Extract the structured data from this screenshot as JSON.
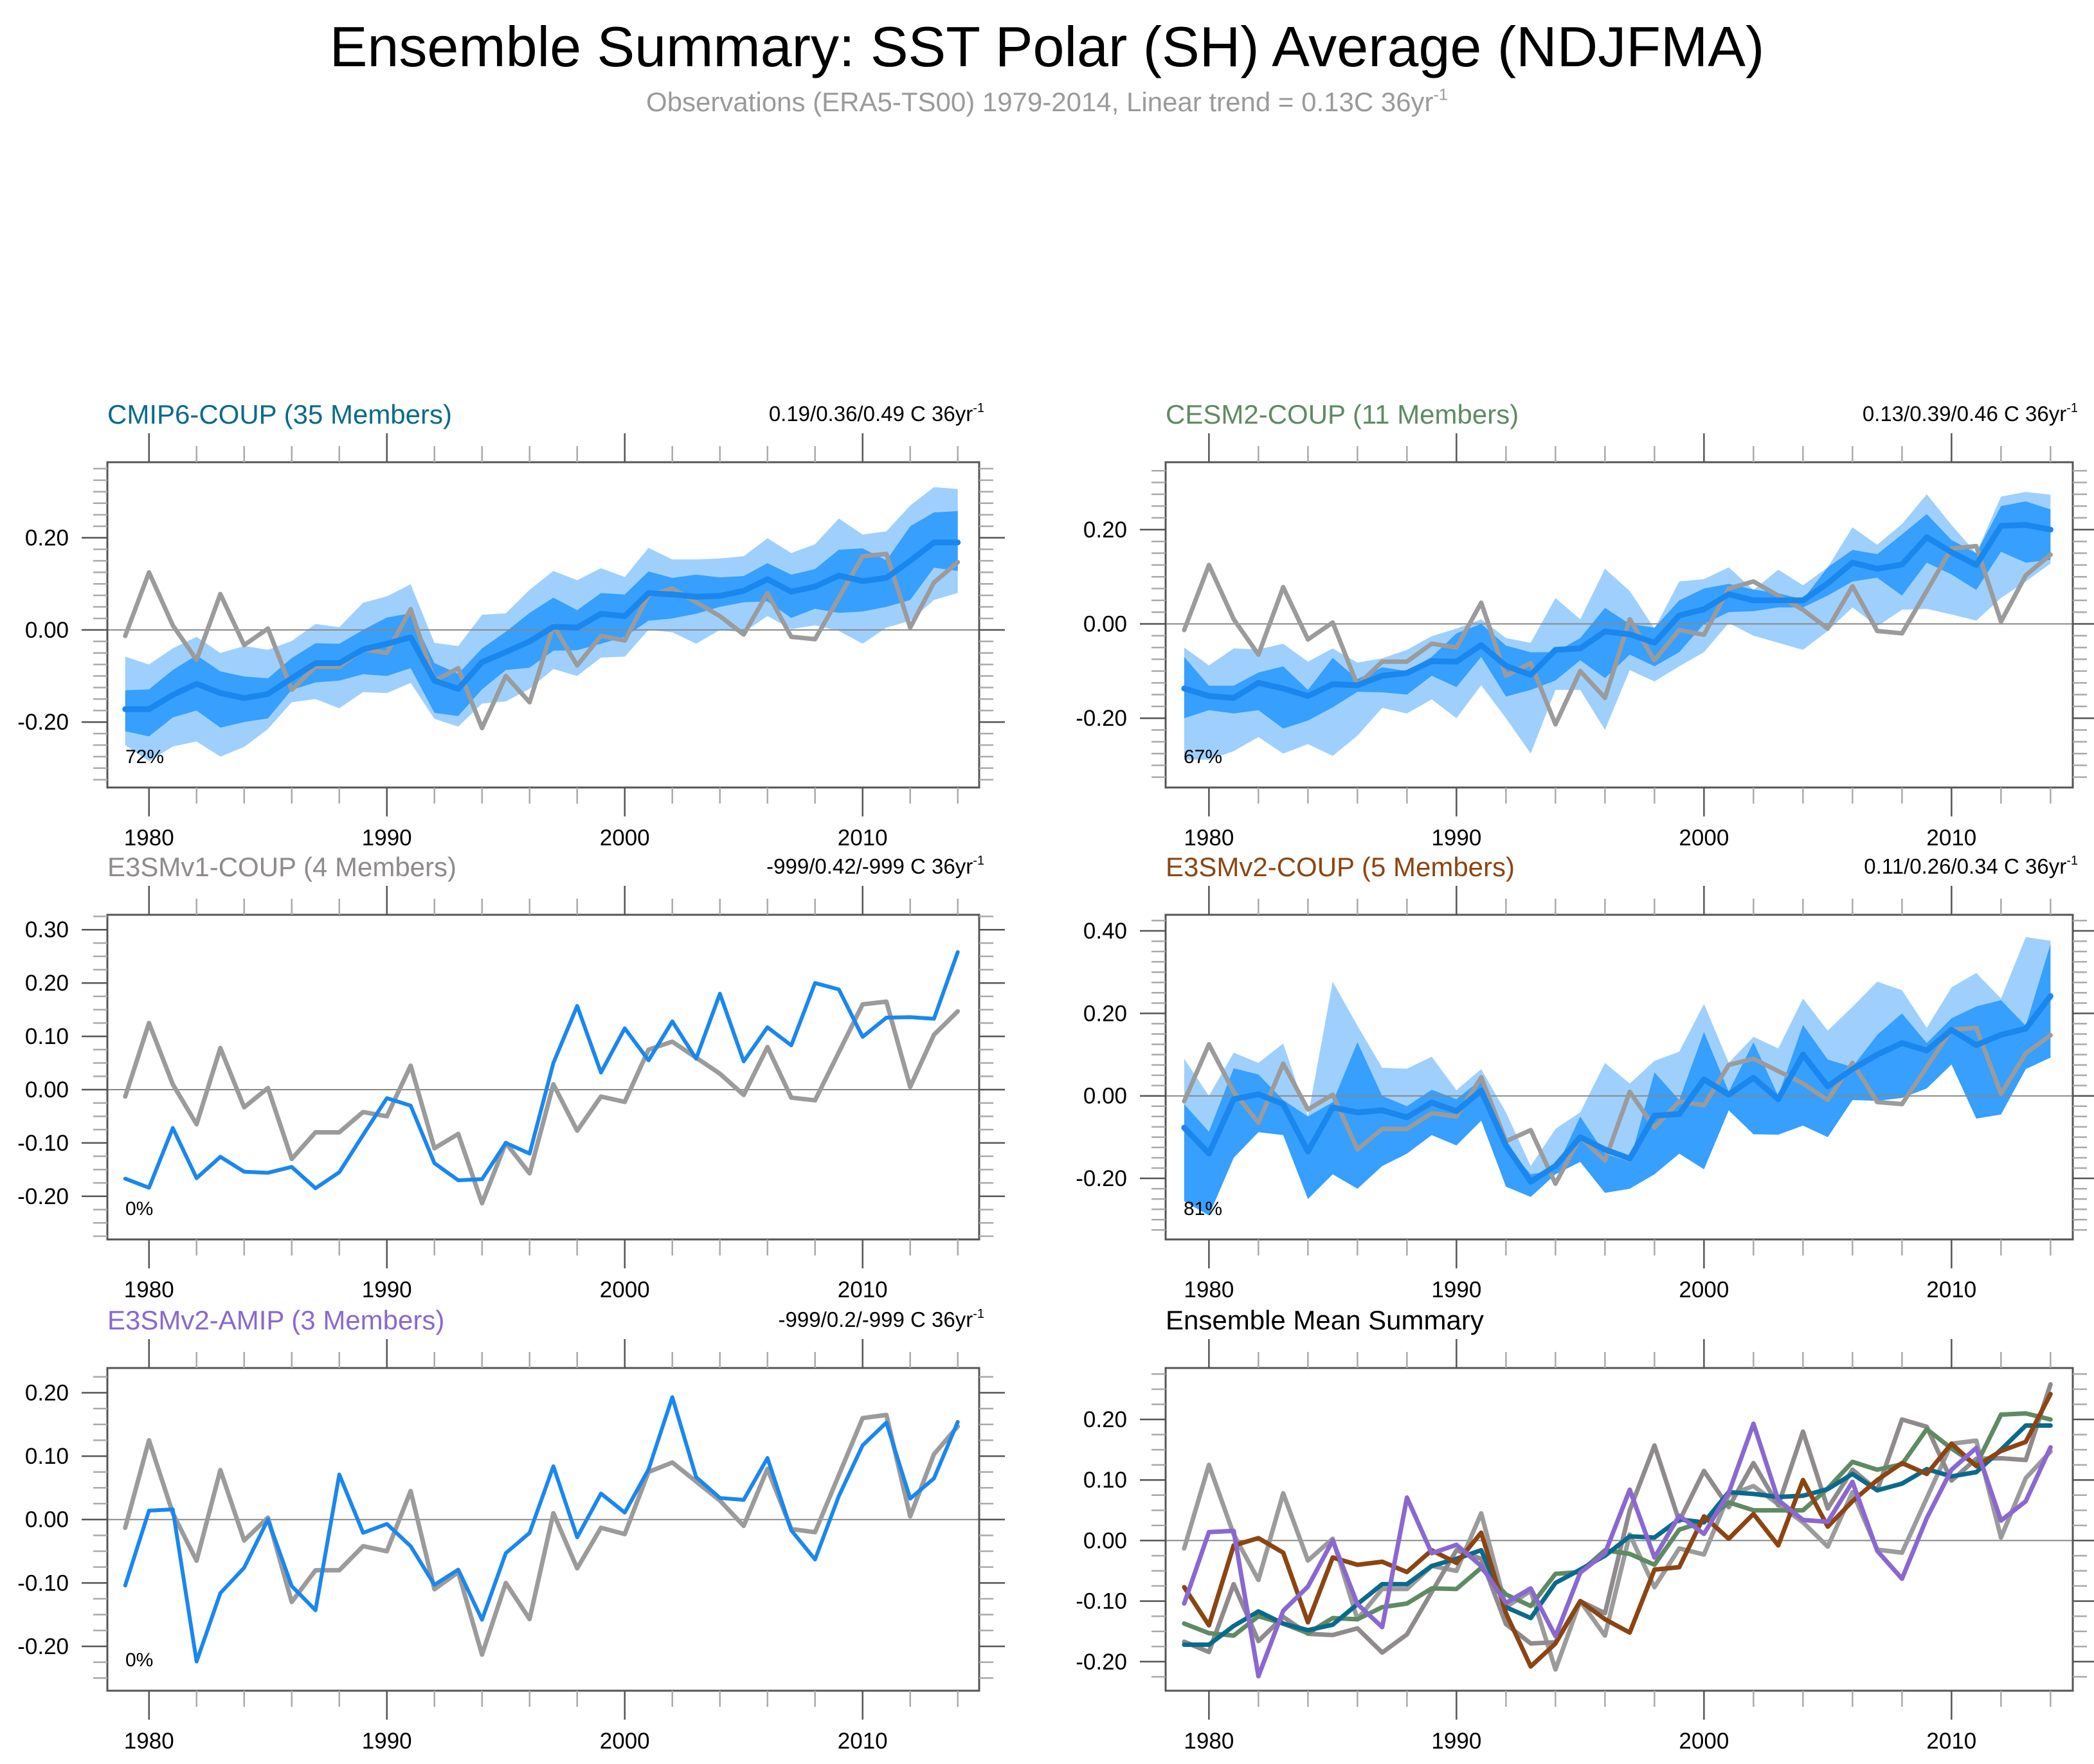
{
  "title": "Ensemble Summary: SST Polar (SH) Average (NDJFMA)",
  "subtitle": {
    "text": "Observations (ERA5-TS00) 1979-2014, Linear trend = 0.13C 36yr",
    "superscript": "-1"
  },
  "colors": {
    "observations": "#9b9b9b",
    "band_outer": "#9fd0fd",
    "band_inner": "#379ffd",
    "ensemble_mean": "#1a87ee",
    "zero_line": "#888888",
    "cmip6": "#0a6a8c",
    "cesm2": "#5f8a63",
    "e3smv1": "#8f8a8c",
    "e3smv2_coup": "#8b4513",
    "e3smv2_amip": "#8a68d0"
  },
  "chart_data": [
    {
      "id": "cmip6",
      "type": "area",
      "title": "CMIP6-COUP (35 Members)",
      "title_color_key": "cmip6",
      "trend_label": "0.19/0.36/0.49 C 36yr",
      "trend_sup": "-1",
      "percent_label": "72%",
      "ylim": [
        -0.342,
        0.364
      ],
      "yticks": [
        -0.2,
        0.0,
        0.2
      ],
      "ytick_labels": [
        "-0.20",
        "0.00",
        "0.20"
      ],
      "xlim": [
        1978.25,
        2014.9
      ],
      "xticks": [
        1980,
        1990,
        2000,
        2010
      ],
      "xtick_labels": [
        "1980",
        "1990",
        "2000",
        "2010"
      ],
      "x": [
        1979,
        1980,
        1981,
        1982,
        1983,
        1984,
        1985,
        1986,
        1987,
        1988,
        1989,
        1990,
        1991,
        1992,
        1993,
        1994,
        1995,
        1996,
        1997,
        1998,
        1999,
        2000,
        2001,
        2002,
        2003,
        2004,
        2005,
        2006,
        2007,
        2008,
        2009,
        2010,
        2011,
        2012,
        2013,
        2014
      ],
      "band_outer_max": [
        -0.058,
        -0.075,
        -0.04,
        -0.015,
        -0.05,
        -0.035,
        -0.043,
        -0.024,
        0.013,
        0.006,
        0.059,
        0.073,
        0.099,
        -0.028,
        -0.035,
        0.033,
        0.036,
        0.087,
        0.128,
        0.108,
        0.134,
        0.115,
        0.178,
        0.153,
        0.153,
        0.155,
        0.16,
        0.199,
        0.167,
        0.186,
        0.242,
        0.207,
        0.214,
        0.27,
        0.31,
        0.306
      ],
      "band_inner_max": [
        -0.131,
        -0.129,
        -0.087,
        -0.055,
        -0.09,
        -0.101,
        -0.105,
        -0.061,
        -0.029,
        -0.03,
        0.0,
        0.027,
        0.036,
        -0.072,
        -0.095,
        -0.04,
        -0.004,
        0.037,
        0.07,
        0.043,
        0.08,
        0.077,
        0.127,
        0.113,
        0.12,
        0.114,
        0.117,
        0.145,
        0.12,
        0.132,
        0.174,
        0.177,
        0.151,
        0.225,
        0.255,
        0.258
      ],
      "band_inner_min": [
        -0.22,
        -0.231,
        -0.19,
        -0.175,
        -0.212,
        -0.2,
        -0.192,
        -0.13,
        -0.114,
        -0.11,
        -0.096,
        -0.1,
        -0.083,
        -0.18,
        -0.187,
        -0.129,
        -0.087,
        -0.082,
        -0.045,
        -0.044,
        -0.03,
        -0.015,
        0.02,
        0.025,
        0.035,
        0.05,
        0.06,
        0.062,
        0.026,
        0.046,
        0.037,
        0.04,
        0.05,
        0.065,
        0.135,
        0.128
      ],
      "band_outer_min": [
        -0.25,
        -0.285,
        -0.253,
        -0.242,
        -0.275,
        -0.254,
        -0.215,
        -0.157,
        -0.15,
        -0.17,
        -0.135,
        -0.137,
        -0.115,
        -0.193,
        -0.21,
        -0.16,
        -0.155,
        -0.128,
        -0.085,
        -0.1,
        -0.06,
        -0.058,
        0.0,
        -0.005,
        -0.03,
        0.0,
        -0.005,
        0.03,
        0.002,
        0.01,
        -0.002,
        -0.03,
        0.005,
        0.02,
        0.065,
        0.08
      ],
      "mean": [
        -0.172,
        -0.172,
        -0.141,
        -0.117,
        -0.137,
        -0.148,
        -0.139,
        -0.105,
        -0.072,
        -0.072,
        -0.042,
        -0.03,
        -0.016,
        -0.11,
        -0.128,
        -0.07,
        -0.048,
        -0.025,
        0.007,
        0.005,
        0.035,
        0.03,
        0.08,
        0.077,
        0.072,
        0.074,
        0.085,
        0.11,
        0.083,
        0.094,
        0.118,
        0.106,
        0.113,
        0.15,
        0.19,
        0.19
      ]
    },
    {
      "id": "cesm2",
      "type": "area",
      "title": "CESM2-COUP (11 Members)",
      "title_color_key": "cesm2",
      "trend_label": "0.13/0.39/0.46 C 36yr",
      "trend_sup": "-1",
      "percent_label": "67%",
      "ylim": [
        -0.347,
        0.343
      ],
      "yticks": [
        -0.2,
        0.0,
        0.2
      ],
      "ytick_labels": [
        "-0.20",
        "0.00",
        "0.20"
      ],
      "xlim": [
        1978.25,
        2014.9
      ],
      "xticks": [
        1980,
        1990,
        2000,
        2010
      ],
      "xtick_labels": [
        "1980",
        "1990",
        "2000",
        "2010"
      ],
      "x": [
        1979,
        1980,
        1981,
        1982,
        1983,
        1984,
        1985,
        1986,
        1987,
        1988,
        1989,
        1990,
        1991,
        1992,
        1993,
        1994,
        1995,
        1996,
        1997,
        1998,
        1999,
        2000,
        2001,
        2002,
        2003,
        2004,
        2005,
        2006,
        2007,
        2008,
        2009,
        2010,
        2011,
        2012,
        2013,
        2014
      ],
      "band_outer_max": [
        -0.05,
        -0.088,
        -0.052,
        -0.054,
        -0.042,
        -0.08,
        -0.052,
        -0.082,
        -0.073,
        -0.055,
        -0.026,
        -0.01,
        0.01,
        -0.03,
        -0.04,
        0.055,
        0.01,
        0.117,
        0.07,
        -0.01,
        0.09,
        0.095,
        0.12,
        0.072,
        0.115,
        0.082,
        0.12,
        0.205,
        0.168,
        0.212,
        0.275,
        0.21,
        0.15,
        0.27,
        0.28,
        0.274
      ],
      "band_inner_max": [
        -0.07,
        -0.131,
        -0.131,
        -0.103,
        -0.09,
        -0.14,
        -0.072,
        -0.117,
        -0.092,
        -0.1,
        -0.07,
        -0.02,
        0.0,
        -0.046,
        -0.06,
        -0.06,
        -0.03,
        0.034,
        0.0,
        -0.008,
        0.05,
        0.075,
        0.085,
        0.073,
        0.065,
        0.052,
        0.12,
        0.157,
        0.148,
        0.19,
        0.233,
        0.178,
        0.15,
        0.25,
        0.26,
        0.243
      ],
      "band_inner_min": [
        -0.2,
        -0.183,
        -0.19,
        -0.183,
        -0.222,
        -0.205,
        -0.177,
        -0.144,
        -0.145,
        -0.15,
        -0.11,
        -0.134,
        -0.07,
        -0.154,
        -0.14,
        -0.12,
        -0.077,
        -0.115,
        -0.065,
        -0.09,
        -0.06,
        0.0,
        0.025,
        0.027,
        0.035,
        0.035,
        0.06,
        0.09,
        0.098,
        0.06,
        0.13,
        0.105,
        0.072,
        0.153,
        0.13,
        0.136
      ],
      "band_outer_min": [
        -0.288,
        -0.288,
        -0.27,
        -0.24,
        -0.275,
        -0.255,
        -0.28,
        -0.237,
        -0.178,
        -0.19,
        -0.16,
        -0.2,
        -0.13,
        -0.2,
        -0.275,
        -0.14,
        -0.14,
        -0.225,
        -0.098,
        -0.122,
        -0.09,
        -0.06,
        0.002,
        -0.025,
        -0.04,
        -0.055,
        -0.015,
        0.035,
        -0.005,
        0.03,
        0.032,
        0.02,
        0.007,
        0.055,
        0.09,
        0.128
      ],
      "mean": [
        -0.137,
        -0.153,
        -0.157,
        -0.125,
        -0.137,
        -0.153,
        -0.128,
        -0.13,
        -0.11,
        -0.104,
        -0.079,
        -0.08,
        -0.045,
        -0.089,
        -0.108,
        -0.055,
        -0.052,
        -0.016,
        -0.022,
        -0.04,
        0.018,
        0.031,
        0.063,
        0.05,
        0.05,
        0.05,
        0.086,
        0.13,
        0.117,
        0.126,
        0.184,
        0.152,
        0.125,
        0.208,
        0.21,
        0.2
      ]
    },
    {
      "id": "e3smv1",
      "type": "line",
      "title": "E3SMv1-COUP (4 Members)",
      "title_color_key": "e3smv1",
      "trend_label": "-999/0.42/-999 C 36yr",
      "trend_sup": "-1",
      "percent_label": "0%",
      "ylim": [
        -0.281,
        0.328
      ],
      "yticks": [
        -0.2,
        -0.1,
        0.0,
        0.1,
        0.2,
        0.3
      ],
      "ytick_labels": [
        "-0.20",
        "-0.10",
        "0.00",
        "0.10",
        "0.20",
        "0.30"
      ],
      "xlim": [
        1978.25,
        2014.9
      ],
      "xticks": [
        1980,
        1990,
        2000,
        2010
      ],
      "xtick_labels": [
        "1980",
        "1990",
        "2000",
        "2010"
      ],
      "x": [
        1979,
        1980,
        1981,
        1982,
        1983,
        1984,
        1985,
        1986,
        1987,
        1988,
        1989,
        1990,
        1991,
        1992,
        1993,
        1994,
        1995,
        1996,
        1997,
        1998,
        1999,
        2000,
        2001,
        2002,
        2003,
        2004,
        2005,
        2006,
        2007,
        2008,
        2009,
        2010,
        2011,
        2012,
        2013,
        2014
      ],
      "mean": [
        -0.167,
        -0.184,
        -0.072,
        -0.166,
        -0.126,
        -0.154,
        -0.156,
        -0.145,
        -0.185,
        -0.155,
        -0.085,
        -0.016,
        -0.03,
        -0.138,
        -0.17,
        -0.168,
        -0.1,
        -0.12,
        0.05,
        0.157,
        0.032,
        0.115,
        0.055,
        0.128,
        0.058,
        0.18,
        0.053,
        0.117,
        0.083,
        0.2,
        0.188,
        0.099,
        0.135,
        0.136,
        0.133,
        0.258
      ]
    },
    {
      "id": "e3smv2_coup",
      "type": "area",
      "title": "E3SMv2-COUP (5 Members)",
      "title_color_key": "e3smv2_coup",
      "trend_label": "0.11/0.26/0.34 C 36yr",
      "trend_sup": "-1",
      "percent_label": "81%",
      "ylim": [
        -0.348,
        0.439
      ],
      "yticks": [
        -0.2,
        0.0,
        0.2,
        0.4
      ],
      "ytick_labels": [
        "-0.20",
        "0.00",
        "0.20",
        "0.40"
      ],
      "xlim": [
        1978.25,
        2014.9
      ],
      "xticks": [
        1980,
        1990,
        2000,
        2010
      ],
      "xtick_labels": [
        "1980",
        "1990",
        "2000",
        "2010"
      ],
      "x": [
        1979,
        1980,
        1981,
        1982,
        1983,
        1984,
        1985,
        1986,
        1987,
        1988,
        1989,
        1990,
        1991,
        1992,
        1993,
        1994,
        1995,
        1996,
        1997,
        1998,
        1999,
        2000,
        2001,
        2002,
        2003,
        2004,
        2005,
        2006,
        2007,
        2008,
        2009,
        2010,
        2011,
        2012,
        2013,
        2014
      ],
      "band_outer_max": [
        0.09,
        0.0,
        0.105,
        0.08,
        0.127,
        -0.05,
        0.277,
        0.17,
        0.068,
        0.066,
        0.095,
        0.014,
        0.065,
        -0.04,
        -0.17,
        -0.08,
        -0.04,
        0.08,
        0.03,
        0.085,
        0.107,
        0.223,
        0.08,
        0.143,
        0.115,
        0.236,
        0.158,
        0.216,
        0.277,
        0.256,
        0.165,
        0.263,
        0.298,
        0.236,
        0.385,
        0.376
      ],
      "band_inner_max": [
        -0.02,
        -0.087,
        0.067,
        0.052,
        -0.01,
        -0.05,
        -0.015,
        0.13,
        0.0,
        -0.025,
        0.015,
        -0.008,
        0.04,
        -0.12,
        -0.19,
        -0.18,
        -0.05,
        -0.14,
        -0.16,
        0.057,
        -0.01,
        0.155,
        0.01,
        0.13,
        0.0,
        0.172,
        0.088,
        0.07,
        0.148,
        0.2,
        0.128,
        0.188,
        0.217,
        0.232,
        0.17,
        0.368
      ],
      "band_inner_min": [
        -0.255,
        -0.29,
        -0.15,
        -0.088,
        -0.095,
        -0.25,
        -0.19,
        -0.225,
        -0.17,
        -0.14,
        -0.095,
        -0.12,
        -0.06,
        -0.22,
        -0.245,
        -0.19,
        -0.16,
        -0.235,
        -0.225,
        -0.19,
        -0.14,
        -0.178,
        -0.035,
        -0.093,
        -0.094,
        -0.072,
        -0.1,
        -0.01,
        -0.012,
        -0.005,
        0.018,
        0.076,
        -0.055,
        -0.045,
        0.065,
        0.093
      ],
      "band_outer_min": [
        -0.255,
        -0.29,
        -0.15,
        -0.088,
        -0.095,
        -0.25,
        -0.19,
        -0.225,
        -0.17,
        -0.14,
        -0.095,
        -0.12,
        -0.06,
        -0.22,
        -0.245,
        -0.19,
        -0.16,
        -0.235,
        -0.225,
        -0.19,
        -0.14,
        -0.178,
        -0.035,
        -0.093,
        -0.094,
        -0.072,
        -0.1,
        -0.01,
        -0.012,
        -0.005,
        0.018,
        0.076,
        -0.055,
        -0.045,
        0.065,
        0.093
      ],
      "mean": [
        -0.077,
        -0.14,
        -0.008,
        0.004,
        -0.02,
        -0.135,
        -0.028,
        -0.04,
        -0.035,
        -0.052,
        -0.016,
        -0.037,
        0.013,
        -0.12,
        -0.208,
        -0.17,
        -0.1,
        -0.13,
        -0.152,
        -0.048,
        -0.044,
        0.04,
        0.003,
        0.044,
        -0.008,
        0.1,
        0.023,
        0.065,
        0.1,
        0.128,
        0.11,
        0.16,
        0.123,
        0.148,
        0.163,
        0.242
      ]
    },
    {
      "id": "e3smv2_amip",
      "type": "line",
      "title": "E3SMv2-AMIP (3 Members)",
      "title_color_key": "e3smv2_amip",
      "trend_label": "-999/0.2/-999 C 36yr",
      "trend_sup": "-1",
      "percent_label": "0%",
      "ylim": [
        -0.27,
        0.239
      ],
      "yticks": [
        -0.2,
        -0.1,
        0.0,
        0.1,
        0.2
      ],
      "ytick_labels": [
        "-0.20",
        "-0.10",
        "0.00",
        "0.10",
        "0.20"
      ],
      "xlim": [
        1978.25,
        2014.9
      ],
      "xticks": [
        1980,
        1990,
        2000,
        2010
      ],
      "xtick_labels": [
        "1980",
        "1990",
        "2000",
        "2010"
      ],
      "x": [
        1979,
        1980,
        1981,
        1982,
        1983,
        1984,
        1985,
        1986,
        1987,
        1988,
        1989,
        1990,
        1991,
        1992,
        1993,
        1994,
        1995,
        1996,
        1997,
        1998,
        1999,
        2000,
        2001,
        2002,
        2003,
        2004,
        2005,
        2006,
        2007,
        2008,
        2009,
        2010,
        2011,
        2012,
        2013,
        2014
      ],
      "mean": [
        -0.104,
        0.014,
        0.016,
        -0.224,
        -0.116,
        -0.076,
        0.0,
        -0.105,
        -0.143,
        0.071,
        -0.021,
        -0.007,
        -0.042,
        -0.103,
        -0.079,
        -0.158,
        -0.053,
        -0.021,
        0.084,
        -0.028,
        0.041,
        0.011,
        0.079,
        0.193,
        0.067,
        0.034,
        0.031,
        0.097,
        -0.017,
        -0.063,
        0.037,
        0.117,
        0.153,
        0.033,
        0.065,
        0.154
      ]
    },
    {
      "id": "summary",
      "type": "line",
      "title": "Ensemble Mean Summary",
      "title_color": "#000000",
      "ylim": [
        -0.248,
        0.285
      ],
      "yticks": [
        -0.2,
        -0.1,
        0.0,
        0.1,
        0.2
      ],
      "ytick_labels": [
        "-0.20",
        "-0.10",
        "0.00",
        "0.10",
        "0.20"
      ],
      "xlim": [
        1978.25,
        2014.9
      ],
      "xticks": [
        1980,
        1990,
        2000,
        2010
      ],
      "xtick_labels": [
        "1980",
        "1990",
        "2000",
        "2010"
      ],
      "series_keys": [
        "observations",
        "e3smv1",
        "cesm2",
        "cmip6",
        "e3smv2_coup",
        "e3smv2_amip"
      ]
    }
  ],
  "observations": {
    "name": "ERA5-TS00",
    "x": [
      1979,
      1980,
      1981,
      1982,
      1983,
      1984,
      1985,
      1986,
      1987,
      1988,
      1989,
      1990,
      1991,
      1992,
      1993,
      1994,
      1995,
      1996,
      1997,
      1998,
      1999,
      2000,
      2001,
      2002,
      2003,
      2004,
      2005,
      2006,
      2007,
      2008,
      2009,
      2010,
      2011,
      2012,
      2013,
      2014
    ],
    "values": [
      -0.013,
      0.125,
      0.01,
      -0.065,
      0.078,
      -0.033,
      0.003,
      -0.13,
      -0.08,
      -0.08,
      -0.042,
      -0.05,
      0.045,
      -0.11,
      -0.083,
      -0.213,
      -0.1,
      -0.157,
      0.01,
      -0.077,
      -0.013,
      -0.023,
      0.075,
      0.09,
      0.06,
      0.03,
      -0.01,
      0.08,
      -0.015,
      -0.02,
      0.07,
      0.16,
      0.165,
      0.005,
      0.103,
      0.147
    ]
  }
}
